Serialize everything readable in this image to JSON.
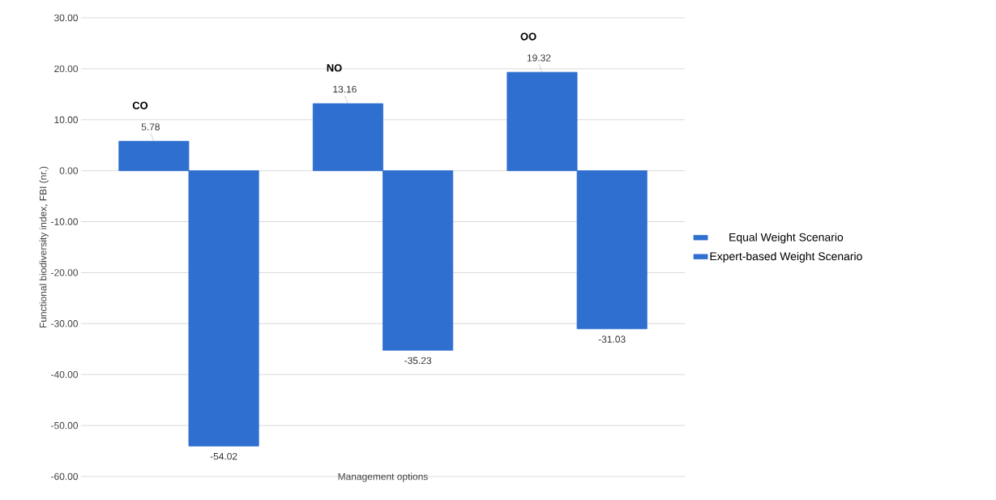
{
  "chart_data": {
    "type": "bar",
    "xlabel": "Management options",
    "ylabel": "Functional biodiversity index, FBI (nr.)",
    "categories": [
      "CO",
      "NO",
      "OO"
    ],
    "series": [
      {
        "name": "Equal Weight Scenario",
        "color": "#2e6fd0",
        "values": [
          5.78,
          13.16,
          19.32
        ],
        "value_labels": [
          "5.78",
          "13.16",
          "19.32"
        ]
      },
      {
        "name": "Expert-based Weight Scenario",
        "color": "#2e6fd0",
        "values": [
          -54.02,
          -35.23,
          -31.03
        ],
        "value_labels": [
          "-54.02",
          "-35.23",
          "-31.03"
        ]
      }
    ],
    "ylim": [
      -60,
      30
    ],
    "yticks": [
      {
        "value": -60,
        "label": "-60.00"
      },
      {
        "value": -50,
        "label": "-50.00"
      },
      {
        "value": -40,
        "label": "-40.00"
      },
      {
        "value": -30,
        "label": "-30.00"
      },
      {
        "value": -20,
        "label": "-20.00"
      },
      {
        "value": -10,
        "label": "-10.00"
      },
      {
        "value": 0,
        "label": "0.00"
      },
      {
        "value": 10,
        "label": "10.00"
      },
      {
        "value": 20,
        "label": "20.00"
      },
      {
        "value": 30,
        "label": "30.00"
      }
    ],
    "grid": "y",
    "legend": "right"
  }
}
